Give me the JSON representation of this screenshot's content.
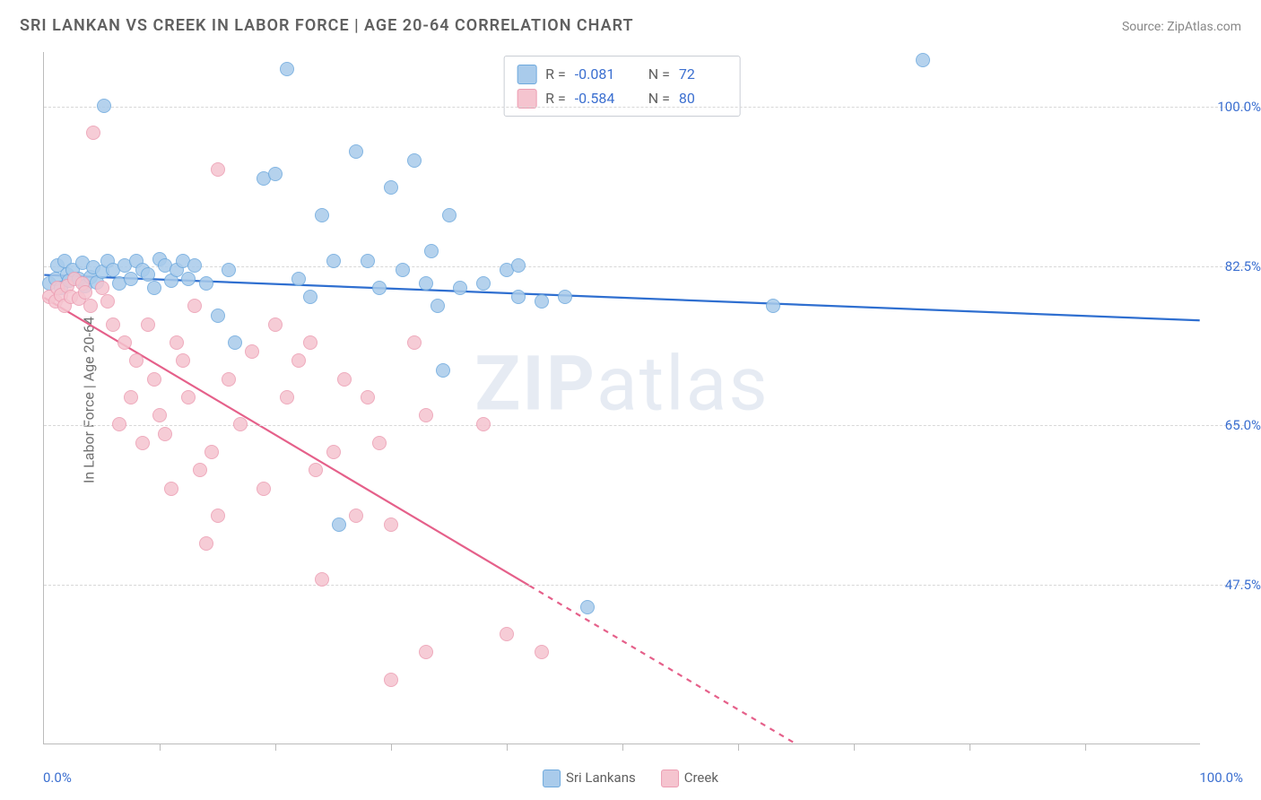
{
  "title": "SRI LANKAN VS CREEK IN LABOR FORCE | AGE 20-64 CORRELATION CHART",
  "source_prefix": "Source: ",
  "source_name": "ZipAtlas.com",
  "ylabel": "In Labor Force | Age 20-64",
  "watermark_a": "ZIP",
  "watermark_b": "atlas",
  "chart": {
    "type": "scatter",
    "xlim": [
      0,
      100
    ],
    "ylim": [
      30,
      106
    ],
    "x_ticks": [
      10,
      20,
      30,
      40,
      50,
      60,
      70,
      80,
      90
    ],
    "y_gridlines": [
      47.5,
      65.0,
      82.5,
      100.0
    ],
    "y_tick_labels": [
      "47.5%",
      "65.0%",
      "82.5%",
      "100.0%"
    ],
    "x_start_label": "0.0%",
    "x_end_label": "100.0%",
    "background_color": "#ffffff",
    "grid_color": "#d8d8d8",
    "axis_color": "#bbbbbb",
    "marker_size": 16,
    "marker_opacity_fill": 0.35,
    "line_width": 2.2
  },
  "series": [
    {
      "name": "Sri Lankans",
      "color_fill": "#a9cbeb",
      "color_stroke": "#6ea9dd",
      "line_color": "#2f6fd0",
      "R": "-0.081",
      "N": "72",
      "trend": {
        "x1": 0,
        "y1": 81.5,
        "x2": 100,
        "y2": 76.5,
        "dash_from_x": null
      },
      "points": [
        [
          0.5,
          80.5
        ],
        [
          1,
          81
        ],
        [
          1.2,
          82.5
        ],
        [
          1.5,
          80
        ],
        [
          1.8,
          83
        ],
        [
          2,
          81.5
        ],
        [
          2.2,
          80.8
        ],
        [
          2.5,
          82
        ],
        [
          3,
          81
        ],
        [
          3.3,
          82.8
        ],
        [
          3.6,
          80.2
        ],
        [
          4,
          81.2
        ],
        [
          4.3,
          82.3
        ],
        [
          4.6,
          80.6
        ],
        [
          5,
          81.8
        ],
        [
          5.2,
          100
        ],
        [
          5.5,
          83
        ],
        [
          6,
          82
        ],
        [
          6.5,
          80.5
        ],
        [
          7,
          82.5
        ],
        [
          7.5,
          81
        ],
        [
          8,
          83
        ],
        [
          8.5,
          82
        ],
        [
          9,
          81.5
        ],
        [
          9.5,
          80
        ],
        [
          10,
          83.2
        ],
        [
          10.5,
          82.5
        ],
        [
          11,
          80.8
        ],
        [
          11.5,
          82
        ],
        [
          12,
          83
        ],
        [
          12.5,
          81
        ],
        [
          13,
          82.5
        ],
        [
          14,
          80.5
        ],
        [
          15,
          77
        ],
        [
          16,
          82
        ],
        [
          16.5,
          74
        ],
        [
          19,
          92
        ],
        [
          20,
          92.5
        ],
        [
          21,
          104
        ],
        [
          22,
          81
        ],
        [
          23,
          79
        ],
        [
          24,
          88
        ],
        [
          25,
          83
        ],
        [
          25.5,
          54
        ],
        [
          27,
          95
        ],
        [
          28,
          83
        ],
        [
          29,
          80
        ],
        [
          30,
          91
        ],
        [
          31,
          82
        ],
        [
          32,
          94
        ],
        [
          33,
          80.5
        ],
        [
          33.5,
          84
        ],
        [
          34,
          78
        ],
        [
          34.5,
          71
        ],
        [
          35,
          88
        ],
        [
          36,
          80
        ],
        [
          38,
          80.5
        ],
        [
          40,
          82
        ],
        [
          41,
          79
        ],
        [
          41,
          82.5
        ],
        [
          43,
          78.5
        ],
        [
          45,
          79
        ],
        [
          47,
          45
        ],
        [
          63,
          78
        ],
        [
          76,
          105
        ]
      ]
    },
    {
      "name": "Creek",
      "color_fill": "#f5c4cf",
      "color_stroke": "#ec9db2",
      "line_color": "#e5608a",
      "R": "-0.584",
      "N": "80",
      "trend": {
        "x1": 0,
        "y1": 79,
        "x2": 65,
        "y2": 30,
        "dash_from_x": 42
      },
      "points": [
        [
          0.5,
          79
        ],
        [
          1,
          78.5
        ],
        [
          1.2,
          80
        ],
        [
          1.5,
          79.2
        ],
        [
          1.8,
          78
        ],
        [
          2,
          80.2
        ],
        [
          2.3,
          79
        ],
        [
          2.6,
          81
        ],
        [
          3,
          78.8
        ],
        [
          3.3,
          80.5
        ],
        [
          3.6,
          79.5
        ],
        [
          4,
          78
        ],
        [
          4.3,
          97
        ],
        [
          5,
          80
        ],
        [
          5.5,
          78.5
        ],
        [
          6,
          76
        ],
        [
          6.5,
          65
        ],
        [
          7,
          74
        ],
        [
          7.5,
          68
        ],
        [
          8,
          72
        ],
        [
          8.5,
          63
        ],
        [
          9,
          76
        ],
        [
          9.5,
          70
        ],
        [
          10,
          66
        ],
        [
          10.5,
          64
        ],
        [
          11,
          58
        ],
        [
          11.5,
          74
        ],
        [
          12,
          72
        ],
        [
          12.5,
          68
        ],
        [
          13,
          78
        ],
        [
          13.5,
          60
        ],
        [
          14,
          52
        ],
        [
          14.5,
          62
        ],
        [
          15,
          55
        ],
        [
          15,
          93
        ],
        [
          16,
          70
        ],
        [
          17,
          65
        ],
        [
          18,
          73
        ],
        [
          19,
          58
        ],
        [
          20,
          76
        ],
        [
          21,
          68
        ],
        [
          22,
          72
        ],
        [
          23,
          74
        ],
        [
          23.5,
          60
        ],
        [
          24,
          48
        ],
        [
          25,
          62
        ],
        [
          26,
          70
        ],
        [
          27,
          55
        ],
        [
          28,
          68
        ],
        [
          29,
          63
        ],
        [
          30,
          54
        ],
        [
          30,
          37
        ],
        [
          32,
          74
        ],
        [
          33,
          66
        ],
        [
          33,
          40
        ],
        [
          38,
          65
        ],
        [
          40,
          42
        ],
        [
          43,
          40
        ]
      ]
    }
  ]
}
